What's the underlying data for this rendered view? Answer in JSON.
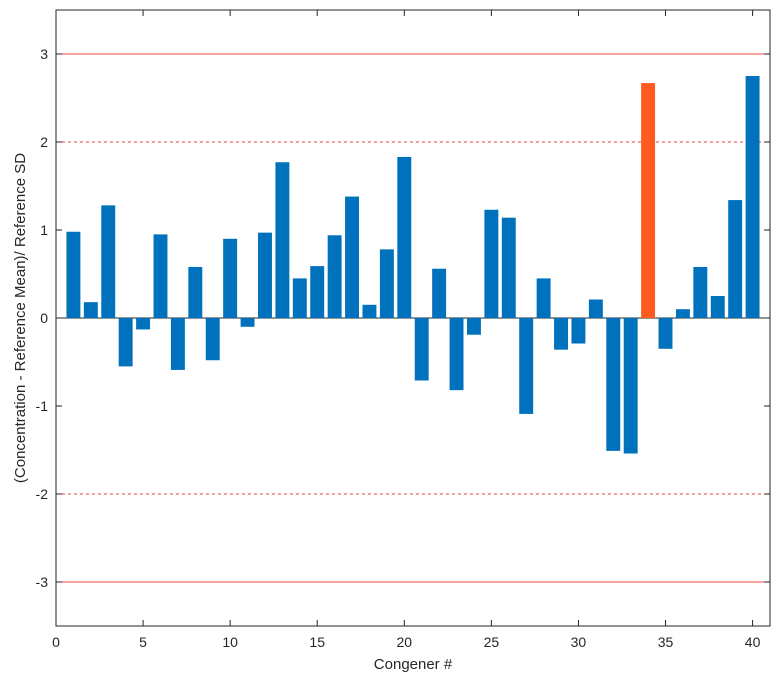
{
  "chart_data": {
    "type": "bar",
    "xlabel": "Congener #",
    "ylabel": "(Concentration - Reference Mean)/ Reference SD",
    "xlim": [
      0,
      41
    ],
    "ylim": [
      -3.5,
      3.5
    ],
    "xticks": [
      0,
      5,
      10,
      15,
      20,
      25,
      30,
      35,
      40
    ],
    "yticks": [
      -3,
      -2,
      -1,
      0,
      1,
      2,
      3
    ],
    "grid": false,
    "reference_lines": [
      {
        "y": 3,
        "style": "solid",
        "color": "#e8463b"
      },
      {
        "y": 2,
        "style": "dashed",
        "color": "#e8463b"
      },
      {
        "y": -2,
        "style": "dashed",
        "color": "#e8463b"
      },
      {
        "y": -3,
        "style": "solid",
        "color": "#e8463b"
      }
    ],
    "bar_color": "#0072bd",
    "highlight_color": "#ff5a1f",
    "highlighted_categories": [
      34
    ],
    "categories": [
      1,
      2,
      3,
      4,
      5,
      6,
      7,
      8,
      9,
      10,
      11,
      12,
      13,
      14,
      15,
      16,
      17,
      18,
      19,
      20,
      21,
      22,
      23,
      24,
      25,
      26,
      27,
      28,
      29,
      30,
      31,
      32,
      33,
      34,
      35,
      36,
      37,
      38,
      39,
      40
    ],
    "values": [
      0.98,
      0.18,
      1.28,
      -0.55,
      -0.13,
      0.95,
      -0.59,
      0.58,
      -0.48,
      0.9,
      -0.1,
      0.97,
      1.77,
      0.45,
      0.59,
      0.94,
      1.38,
      0.15,
      0.78,
      1.83,
      -0.71,
      0.56,
      -0.82,
      -0.19,
      1.23,
      1.14,
      -1.09,
      0.45,
      -0.36,
      -0.29,
      0.21,
      -1.51,
      -1.54,
      2.67,
      -0.35,
      0.1,
      0.58,
      0.25,
      1.34,
      2.75
    ]
  }
}
